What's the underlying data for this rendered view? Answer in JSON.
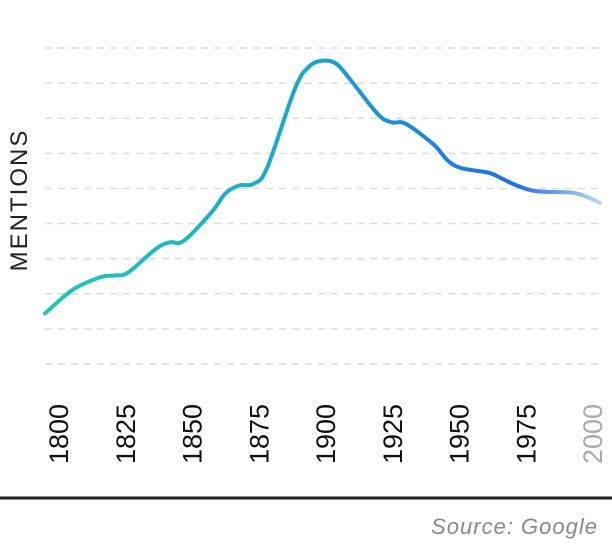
{
  "chart_data": {
    "type": "line",
    "ylabel": "MENTIONS",
    "xlim": [
      1800,
      2000
    ],
    "ylim": [
      0,
      10
    ],
    "grid": true,
    "grid_style": "dashed horizontal",
    "x_ticks": [
      "1800",
      "1825",
      "1850",
      "1875",
      "1900",
      "1925",
      "1950",
      "1975",
      "2000"
    ],
    "x_tick_colors": [
      "#111111",
      "#111111",
      "#111111",
      "#111111",
      "#111111",
      "#111111",
      "#111111",
      "#111111",
      "#aaaaaa"
    ],
    "series": [
      {
        "x": [
          1800,
          1810,
          1820,
          1825,
          1830,
          1840,
          1845,
          1850,
          1860,
          1865,
          1870,
          1875,
          1880,
          1890,
          1895,
          1900,
          1905,
          1910,
          1920,
          1925,
          1930,
          1940,
          1945,
          1950,
          1960,
          1965,
          1970,
          1975,
          1980,
          1990,
          1995,
          2000
        ],
        "y": [
          1.6,
          2.35,
          2.75,
          2.8,
          2.9,
          3.65,
          3.85,
          3.9,
          4.8,
          5.4,
          5.65,
          5.7,
          6.2,
          8.7,
          9.4,
          9.6,
          9.5,
          9.0,
          7.9,
          7.65,
          7.6,
          6.95,
          6.45,
          6.2,
          6.05,
          5.85,
          5.65,
          5.5,
          5.45,
          5.42,
          5.3,
          5.1
        ]
      }
    ],
    "line_colors": [
      "#1fc8b4",
      "#18a9d2",
      "#1f6fe0",
      "#b8d6f4"
    ]
  },
  "source": "Source: Google"
}
